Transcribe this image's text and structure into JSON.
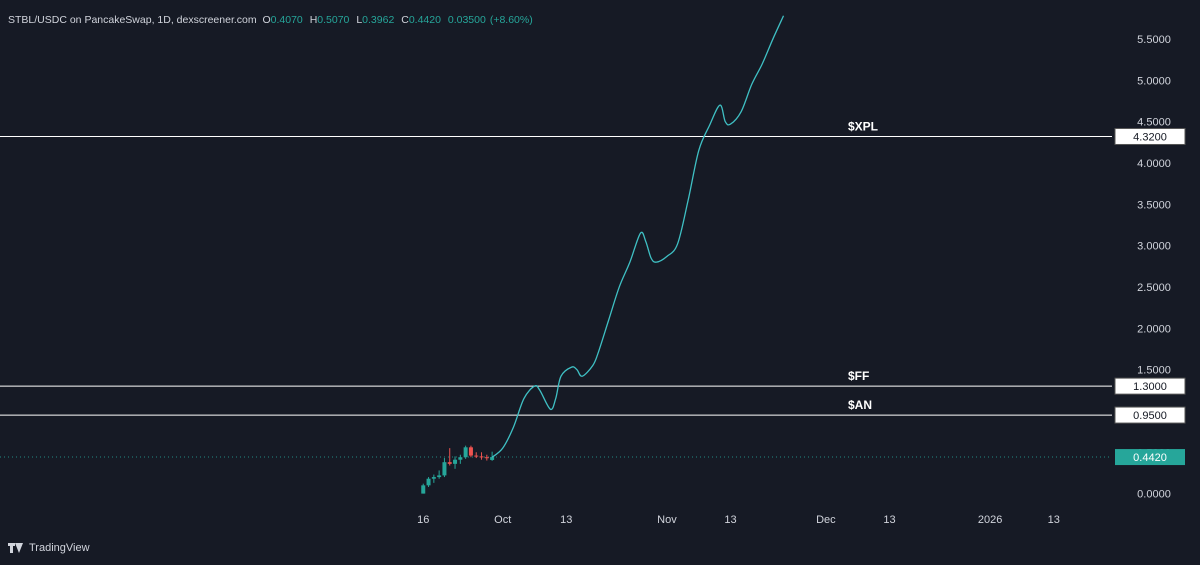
{
  "header": {
    "symbol": "STBL/USDC on PancakeSwap, 1D, dexscreener.com",
    "open_label": "O",
    "open": "0.4070",
    "high_label": "H",
    "high": "0.5070",
    "low_label": "L",
    "low": "0.3962",
    "close_label": "C",
    "close": "0.4420",
    "change": "0.03500",
    "change_pct": "(+8.60%)"
  },
  "footer": {
    "brand": "TradingView"
  },
  "colors": {
    "background": "#161a25",
    "up": "#26a69a",
    "down": "#ef5350",
    "projection": "#3fc0c4",
    "level_line": "#ffffff",
    "text": "#d1d4dc"
  },
  "chart_data": {
    "type": "line",
    "y_axis": {
      "ticks": [
        "0.0000",
        "0.5000",
        "1.0000",
        "1.5000",
        "2.0000",
        "2.5000",
        "3.0000",
        "3.5000",
        "4.0000",
        "4.5000",
        "5.0000",
        "5.5000"
      ],
      "ylim": [
        -0.15,
        5.85
      ]
    },
    "x_axis": {
      "ticks": [
        {
          "date": "2025-09-16",
          "label": "16"
        },
        {
          "date": "2025-10-01",
          "label": "Oct"
        },
        {
          "date": "2025-10-13",
          "label": "13"
        },
        {
          "date": "2025-11-01",
          "label": "Nov"
        },
        {
          "date": "2025-11-13",
          "label": "13"
        },
        {
          "date": "2025-12-01",
          "label": "Dec"
        },
        {
          "date": "2025-12-13",
          "label": "13"
        },
        {
          "date": "2026-01-01",
          "label": "2026"
        },
        {
          "date": "2026-01-13",
          "label": "13"
        }
      ],
      "xlim": [
        "2025-06-30",
        "2026-01-24"
      ]
    },
    "candles": [
      {
        "date": "2025-16-09",
        "o": 0.0,
        "h": 0.12,
        "l": 0.0,
        "c": 0.1
      },
      {
        "date": "2025-09-17",
        "o": 0.1,
        "h": 0.2,
        "l": 0.08,
        "c": 0.18
      },
      {
        "date": "2025-09-18",
        "o": 0.18,
        "h": 0.23,
        "l": 0.13,
        "c": 0.2
      },
      {
        "date": "2025-09-19",
        "o": 0.2,
        "h": 0.28,
        "l": 0.18,
        "c": 0.22
      },
      {
        "date": "2025-09-20",
        "o": 0.22,
        "h": 0.43,
        "l": 0.2,
        "c": 0.38
      },
      {
        "date": "2025-09-21",
        "o": 0.38,
        "h": 0.55,
        "l": 0.34,
        "c": 0.36
      },
      {
        "date": "2025-09-22",
        "o": 0.36,
        "h": 0.45,
        "l": 0.3,
        "c": 0.41
      },
      {
        "date": "2025-09-23",
        "o": 0.41,
        "h": 0.47,
        "l": 0.36,
        "c": 0.44
      },
      {
        "date": "2025-09-24",
        "o": 0.44,
        "h": 0.58,
        "l": 0.42,
        "c": 0.56
      },
      {
        "date": "2025-09-25",
        "o": 0.56,
        "h": 0.58,
        "l": 0.44,
        "c": 0.46
      },
      {
        "date": "2025-09-26",
        "o": 0.46,
        "h": 0.5,
        "l": 0.43,
        "c": 0.45
      },
      {
        "date": "2025-09-27",
        "o": 0.45,
        "h": 0.5,
        "l": 0.41,
        "c": 0.44
      },
      {
        "date": "2025-09-28",
        "o": 0.44,
        "h": 0.47,
        "l": 0.4,
        "c": 0.43
      },
      {
        "date": "2025-09-29",
        "o": 0.407,
        "h": 0.507,
        "l": 0.3962,
        "c": 0.442
      }
    ],
    "projection": [
      {
        "date": "2025-09-29",
        "y": 0.44
      },
      {
        "date": "2025-10-01",
        "y": 0.55
      },
      {
        "date": "2025-10-03",
        "y": 0.8
      },
      {
        "date": "2025-10-05",
        "y": 1.15
      },
      {
        "date": "2025-10-07",
        "y": 1.3
      },
      {
        "date": "2025-10-08",
        "y": 1.25
      },
      {
        "date": "2025-10-10",
        "y": 1.02
      },
      {
        "date": "2025-10-11",
        "y": 1.15
      },
      {
        "date": "2025-10-12",
        "y": 1.42
      },
      {
        "date": "2025-10-14",
        "y": 1.53
      },
      {
        "date": "2025-10-15",
        "y": 1.5
      },
      {
        "date": "2025-10-16",
        "y": 1.42
      },
      {
        "date": "2025-10-18",
        "y": 1.55
      },
      {
        "date": "2025-10-19",
        "y": 1.7
      },
      {
        "date": "2025-10-21",
        "y": 2.1
      },
      {
        "date": "2025-10-23",
        "y": 2.5
      },
      {
        "date": "2025-10-25",
        "y": 2.8
      },
      {
        "date": "2025-10-27",
        "y": 3.15
      },
      {
        "date": "2025-10-28",
        "y": 3.05
      },
      {
        "date": "2025-10-29",
        "y": 2.85
      },
      {
        "date": "2025-10-30",
        "y": 2.8
      },
      {
        "date": "2025-11-01",
        "y": 2.87
      },
      {
        "date": "2025-11-03",
        "y": 3.02
      },
      {
        "date": "2025-11-05",
        "y": 3.55
      },
      {
        "date": "2025-11-07",
        "y": 4.15
      },
      {
        "date": "2025-11-09",
        "y": 4.45
      },
      {
        "date": "2025-11-11",
        "y": 4.7
      },
      {
        "date": "2025-11-12",
        "y": 4.5
      },
      {
        "date": "2025-11-13",
        "y": 4.47
      },
      {
        "date": "2025-11-15",
        "y": 4.62
      },
      {
        "date": "2025-11-17",
        "y": 4.95
      },
      {
        "date": "2025-11-19",
        "y": 5.2
      },
      {
        "date": "2025-11-21",
        "y": 5.5
      },
      {
        "date": "2025-11-23",
        "y": 5.78
      }
    ],
    "levels": [
      {
        "label": "$XPL",
        "value": 4.32,
        "price_label": "4.3200"
      },
      {
        "label": "$FF",
        "value": 1.3,
        "price_label": "1.3000"
      },
      {
        "label": "$AN",
        "value": 0.95,
        "price_label": "0.9500"
      }
    ],
    "last_price": {
      "value": 0.442,
      "price_label": "0.4420"
    },
    "grid": false
  }
}
